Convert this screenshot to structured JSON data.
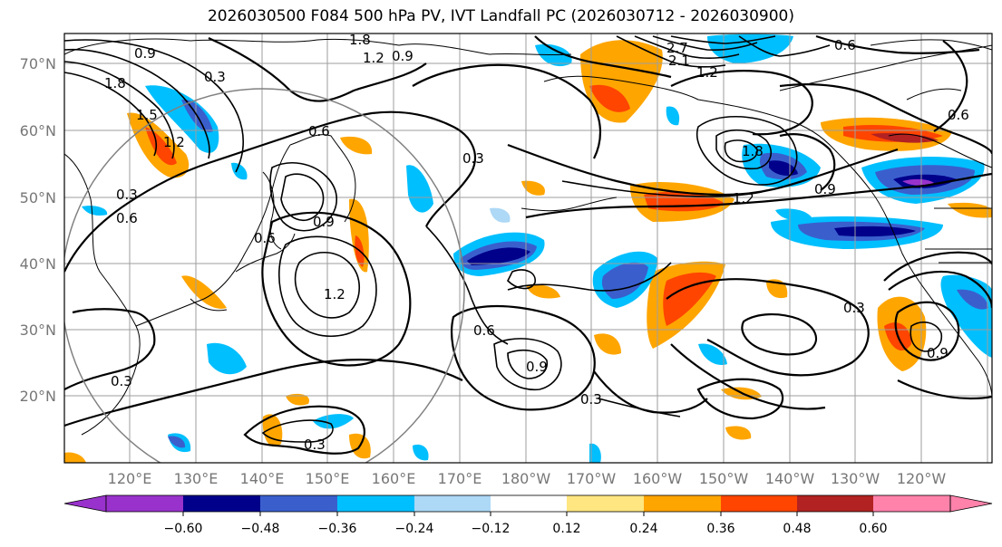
{
  "title": "2026030500 F084 500 hPa PV, IVT Landfall PC (2026030712 - 2026030900)",
  "latitude_labels": [
    "70°N",
    "60°N",
    "50°N",
    "40°N",
    "30°N",
    "20°N"
  ],
  "longitude_labels": [
    "120°E",
    "130°E",
    "140°E",
    "150°E",
    "160°E",
    "170°E",
    "180°W",
    "170°W",
    "160°W",
    "150°W",
    "140°W",
    "130°W",
    "120°W"
  ],
  "colorbar": {
    "tick_labels": [
      "−0.60",
      "−0.48",
      "−0.36",
      "−0.24",
      "−0.12",
      "0.12",
      "0.24",
      "0.36",
      "0.48",
      "0.60"
    ],
    "colors": [
      "#9932cc",
      "#00008b",
      "#3a5fcd",
      "#00bfff",
      "#add8f6",
      "#ffffff",
      "#ffe680",
      "#ffa500",
      "#ff4500",
      "#b22222",
      "#ff82ab"
    ]
  },
  "contour_labels": [
    "1.8",
    "1.2",
    "0.9",
    "0.3",
    "1.8",
    "1.5",
    "1.2",
    "0.6",
    "0.9",
    "0.6",
    "0.3",
    "1.2",
    "0.9",
    "0.6",
    "0.3",
    "2.7",
    "2.1",
    "1.2",
    "1.8",
    "0.6",
    "0.9",
    "1.2",
    "0.3",
    "0.9",
    "0.6",
    "0.3",
    "0.3",
    "0.9",
    "0.6",
    "0.3"
  ],
  "colors": {
    "coast": "#000000",
    "grid": "#9e9e9e",
    "contour": "#000000",
    "circle": "#808080"
  }
}
